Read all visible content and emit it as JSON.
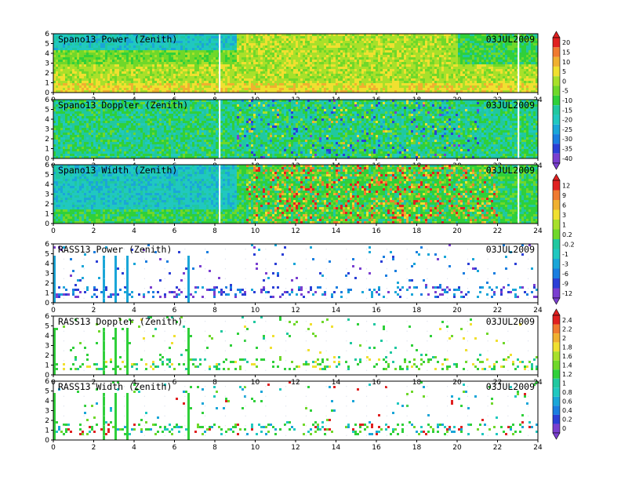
{
  "chart_data": [
    {
      "type": "heatmap",
      "title": "Spano13 Power (Zenith)",
      "date": "03JUL2009",
      "x_ticks": [
        "0",
        "2",
        "4",
        "6",
        "8",
        "10",
        "12",
        "14",
        "16",
        "18",
        "20",
        "22",
        "24"
      ],
      "y_ticks": [
        "0",
        "1",
        "2",
        "3",
        "4",
        "5",
        "6"
      ],
      "xlim": [
        0,
        24
      ],
      "ylim": [
        0,
        6
      ],
      "colorbar_labels": [
        "20",
        "15",
        "10",
        "5",
        "0",
        "-5",
        "-10",
        "-15",
        "-20",
        "-25",
        "-30",
        "-35",
        "-40"
      ]
    },
    {
      "type": "heatmap",
      "title": "Spano13 Doppler (Zenith)",
      "date": "03JUL2009",
      "x_ticks": [
        "0",
        "2",
        "4",
        "6",
        "8",
        "10",
        "12",
        "14",
        "16",
        "18",
        "20",
        "22",
        "24"
      ],
      "y_ticks": [
        "0",
        "1",
        "2",
        "3",
        "4",
        "5",
        "6"
      ],
      "xlim": [
        0,
        24
      ],
      "ylim": [
        0,
        6
      ]
    },
    {
      "type": "heatmap",
      "title": "Spano13 Width (Zenith)",
      "date": "03JUL2009",
      "x_ticks": [
        "0",
        "2",
        "4",
        "6",
        "8",
        "10",
        "12",
        "14",
        "16",
        "18",
        "20",
        "22",
        "24"
      ],
      "y_ticks": [
        "0",
        "1",
        "2",
        "3",
        "4",
        "5",
        "6"
      ],
      "xlim": [
        0,
        24
      ],
      "ylim": [
        0,
        6
      ],
      "colorbar_labels": [
        "12",
        "9",
        "6",
        "3",
        "1",
        "0.2",
        "-0.2",
        "-1",
        "-3",
        "-6",
        "-9",
        "-12"
      ]
    },
    {
      "type": "heatmap",
      "title": "RASS13 Power (Zenith)",
      "date": "03JUL2009",
      "x_ticks": [
        "0",
        "2",
        "4",
        "6",
        "8",
        "10",
        "12",
        "14",
        "16",
        "18",
        "20",
        "22",
        "24"
      ],
      "y_ticks": [
        "0",
        "1",
        "2",
        "3",
        "4",
        "5",
        "6"
      ],
      "xlim": [
        0,
        24
      ],
      "ylim": [
        0,
        6
      ]
    },
    {
      "type": "heatmap",
      "title": "RASS13 Doppler (Zenith)",
      "date": "03JUL2009",
      "x_ticks": [
        "0",
        "2",
        "4",
        "6",
        "8",
        "10",
        "12",
        "14",
        "16",
        "18",
        "20",
        "22",
        "24"
      ],
      "y_ticks": [
        "0",
        "1",
        "2",
        "3",
        "4",
        "5",
        "6"
      ],
      "xlim": [
        0,
        24
      ],
      "ylim": [
        0,
        6
      ],
      "colorbar_labels": [
        "2.4",
        "2.2",
        "2",
        "1.8",
        "1.6",
        "1.4",
        "1.2",
        "1",
        "0.8",
        "0.6",
        "0.4",
        "0.2",
        "0"
      ]
    },
    {
      "type": "heatmap",
      "title": "RASS13 Width (Zenith)",
      "date": "03JUL2009",
      "x_ticks": [
        "0",
        "2",
        "4",
        "6",
        "8",
        "10",
        "12",
        "14",
        "16",
        "18",
        "20",
        "22",
        "24"
      ],
      "y_ticks": [
        "0",
        "1",
        "2",
        "3",
        "4",
        "5",
        "6"
      ],
      "xlim": [
        0,
        24
      ],
      "ylim": [
        0,
        6
      ]
    }
  ]
}
